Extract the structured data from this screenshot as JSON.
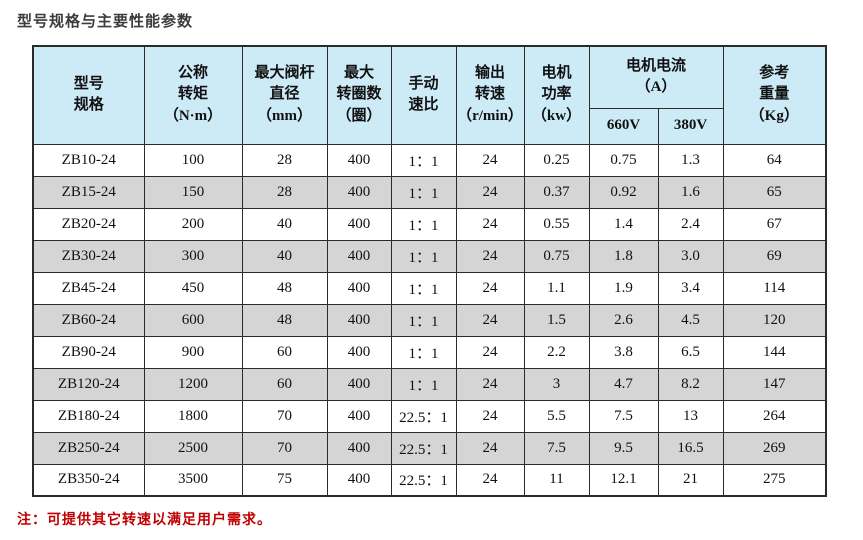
{
  "page": {
    "title": "型号规格与主要性能参数",
    "note": "注：可提供其它转速以满足用户需求。"
  },
  "colors": {
    "header_bg": "#cdeaf7",
    "alt_row_bg": "#d5d5d5",
    "border": "#2b2b2b",
    "note": "#c00000",
    "title": "#3c3c3c"
  },
  "table": {
    "header": {
      "model": "型号\n规格",
      "torque": "公称\n转矩\n（N·m）",
      "stem_diameter": "最大阀杆\n直径\n（mm）",
      "max_turns": "最大\n转圈数\n（圈）",
      "manual_ratio": "手动\n速比",
      "output_speed": "输出\n转速\n（r/min）",
      "motor_power": "电机\n功率\n（kw）",
      "motor_current": "电机电流\n（A）",
      "v660": "660V",
      "v380": "380V",
      "weight": "参考\n重量\n（Kg）"
    },
    "rows": [
      [
        "ZB10-24",
        "100",
        "28",
        "400",
        "1：1",
        "24",
        "0.25",
        "0.75",
        "1.3",
        "64"
      ],
      [
        "ZB15-24",
        "150",
        "28",
        "400",
        "1：1",
        "24",
        "0.37",
        "0.92",
        "1.6",
        "65"
      ],
      [
        "ZB20-24",
        "200",
        "40",
        "400",
        "1：1",
        "24",
        "0.55",
        "1.4",
        "2.4",
        "67"
      ],
      [
        "ZB30-24",
        "300",
        "40",
        "400",
        "1：1",
        "24",
        "0.75",
        "1.8",
        "3.0",
        "69"
      ],
      [
        "ZB45-24",
        "450",
        "48",
        "400",
        "1：1",
        "24",
        "1.1",
        "1.9",
        "3.4",
        "114"
      ],
      [
        "ZB60-24",
        "600",
        "48",
        "400",
        "1：1",
        "24",
        "1.5",
        "2.6",
        "4.5",
        "120"
      ],
      [
        "ZB90-24",
        "900",
        "60",
        "400",
        "1：1",
        "24",
        "2.2",
        "3.8",
        "6.5",
        "144"
      ],
      [
        "ZB120-24",
        "1200",
        "60",
        "400",
        "1：1",
        "24",
        "3",
        "4.7",
        "8.2",
        "147"
      ],
      [
        "ZB180-24",
        "1800",
        "70",
        "400",
        "22.5：1",
        "24",
        "5.5",
        "7.5",
        "13",
        "264"
      ],
      [
        "ZB250-24",
        "2500",
        "70",
        "400",
        "22.5：1",
        "24",
        "7.5",
        "9.5",
        "16.5",
        "269"
      ],
      [
        "ZB350-24",
        "3500",
        "75",
        "400",
        "22.5：1",
        "24",
        "11",
        "12.1",
        "21",
        "275"
      ]
    ]
  }
}
